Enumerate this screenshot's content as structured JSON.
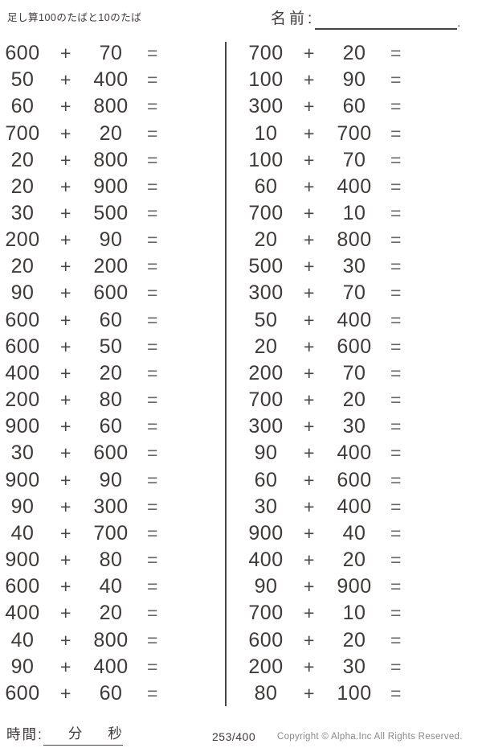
{
  "header": {
    "title": "足し算100のたばと10のたば",
    "name_label": "名前:",
    "name_suffix": "."
  },
  "problems": {
    "operator": "+",
    "equals": "=",
    "left": [
      {
        "a": "600",
        "b": "70"
      },
      {
        "a": "50",
        "b": "400"
      },
      {
        "a": "60",
        "b": "800"
      },
      {
        "a": "700",
        "b": "20"
      },
      {
        "a": "20",
        "b": "800"
      },
      {
        "a": "20",
        "b": "900"
      },
      {
        "a": "30",
        "b": "500"
      },
      {
        "a": "200",
        "b": "90"
      },
      {
        "a": "20",
        "b": "200"
      },
      {
        "a": "90",
        "b": "600"
      },
      {
        "a": "600",
        "b": "60"
      },
      {
        "a": "600",
        "b": "50"
      },
      {
        "a": "400",
        "b": "20"
      },
      {
        "a": "200",
        "b": "80"
      },
      {
        "a": "900",
        "b": "60"
      },
      {
        "a": "30",
        "b": "600"
      },
      {
        "a": "900",
        "b": "90"
      },
      {
        "a": "90",
        "b": "300"
      },
      {
        "a": "40",
        "b": "700"
      },
      {
        "a": "900",
        "b": "80"
      },
      {
        "a": "600",
        "b": "40"
      },
      {
        "a": "400",
        "b": "20"
      },
      {
        "a": "40",
        "b": "800"
      },
      {
        "a": "90",
        "b": "400"
      },
      {
        "a": "600",
        "b": "60"
      }
    ],
    "right": [
      {
        "a": "700",
        "b": "20"
      },
      {
        "a": "100",
        "b": "90"
      },
      {
        "a": "300",
        "b": "60"
      },
      {
        "a": "10",
        "b": "700"
      },
      {
        "a": "100",
        "b": "70"
      },
      {
        "a": "60",
        "b": "400"
      },
      {
        "a": "700",
        "b": "10"
      },
      {
        "a": "20",
        "b": "800"
      },
      {
        "a": "500",
        "b": "30"
      },
      {
        "a": "300",
        "b": "70"
      },
      {
        "a": "50",
        "b": "400"
      },
      {
        "a": "20",
        "b": "600"
      },
      {
        "a": "200",
        "b": "70"
      },
      {
        "a": "700",
        "b": "20"
      },
      {
        "a": "300",
        "b": "30"
      },
      {
        "a": "90",
        "b": "400"
      },
      {
        "a": "60",
        "b": "600"
      },
      {
        "a": "30",
        "b": "400"
      },
      {
        "a": "900",
        "b": "40"
      },
      {
        "a": "400",
        "b": "20"
      },
      {
        "a": "90",
        "b": "900"
      },
      {
        "a": "700",
        "b": "10"
      },
      {
        "a": "600",
        "b": "20"
      },
      {
        "a": "200",
        "b": "30"
      },
      {
        "a": "80",
        "b": "100"
      }
    ]
  },
  "footer": {
    "time_label": "時間:",
    "minutes_label": "分",
    "seconds_label": "秒",
    "page_number": "253/400",
    "copyright": "Copyright ©  Alpha.Inc All Rights Reserved."
  },
  "colors": {
    "text": "#3e3a39",
    "rule_line": "#4a4545",
    "copyright_text": "#8a8888"
  }
}
